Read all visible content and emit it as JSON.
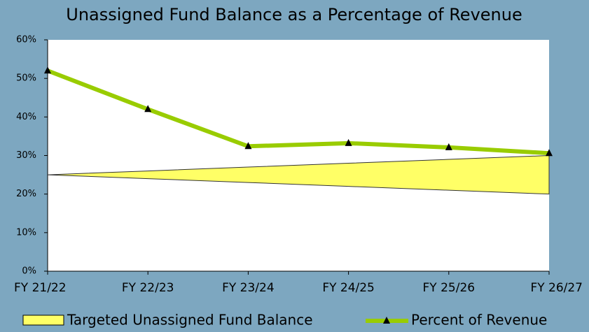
{
  "chart_data": {
    "type": "line",
    "title": "Unassigned Fund Balance as a Percentage of Revenue",
    "categories": [
      "FY 21/22",
      "FY 22/23",
      "FY 23/24",
      "FY 24/25",
      "FY 25/26",
      "FY 26/27"
    ],
    "band": {
      "name": "Targeted Unassigned Fund Balance",
      "color": "#ffff66",
      "low": [
        25,
        24,
        23,
        22,
        21,
        20
      ],
      "high": [
        25,
        26,
        27,
        28,
        29,
        30
      ]
    },
    "series": [
      {
        "name": "Percent of Revenue",
        "color": "#99cc00",
        "values": [
          52,
          42,
          32.4,
          33.2,
          32.1,
          30.6
        ]
      }
    ],
    "ylim": [
      0,
      60
    ],
    "yticks": [
      {
        "value": 0,
        "label": "0%"
      },
      {
        "value": 10,
        "label": "10%"
      },
      {
        "value": 20,
        "label": "20%"
      },
      {
        "value": 30,
        "label": "30%"
      },
      {
        "value": 40,
        "label": "40%"
      },
      {
        "value": 50,
        "label": "50%"
      },
      {
        "value": 60,
        "label": "60%"
      }
    ],
    "grid": false
  }
}
